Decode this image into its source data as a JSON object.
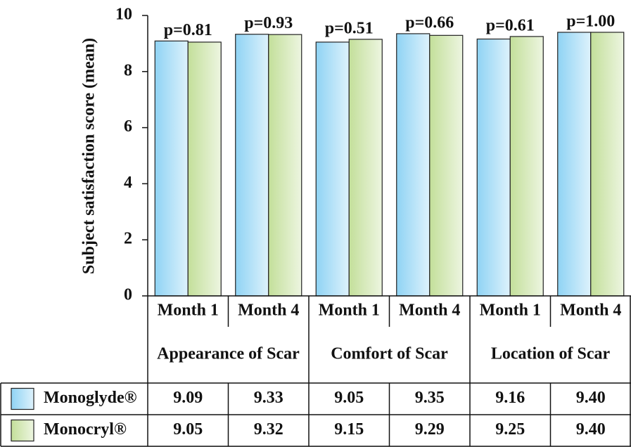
{
  "chart_data": {
    "type": "bar",
    "y_label": "Subject satisfaction score (mean)",
    "categories": [
      "Month 1",
      "Month 4",
      "Month 1",
      "Month 4",
      "Month 1",
      "Month 4"
    ],
    "groups": [
      "Appearance of Scar",
      "Comfort of Scar",
      "Location of Scar"
    ],
    "series": [
      {
        "name": "Monoglyde®",
        "color": "#8fd3f4",
        "values": [
          9.09,
          9.33,
          9.05,
          9.35,
          9.16,
          9.4
        ],
        "value_labels": [
          "9.09",
          "9.33",
          "9.05",
          "9.35",
          "9.16",
          "9.40"
        ]
      },
      {
        "name": "Monocryl®",
        "color": "#c3df9a",
        "values": [
          9.05,
          9.32,
          9.15,
          9.29,
          9.25,
          9.4
        ],
        "value_labels": [
          "9.05",
          "9.32",
          "9.15",
          "9.29",
          "9.25",
          "9.40"
        ]
      }
    ],
    "annotations": [
      "p=0.81",
      "p=0.93",
      "p=0.51",
      "p=0.66",
      "p=0.61",
      "p=1.00"
    ],
    "ylim": [
      0,
      10
    ],
    "yticks": [
      0,
      2,
      4,
      6,
      8,
      10
    ]
  }
}
